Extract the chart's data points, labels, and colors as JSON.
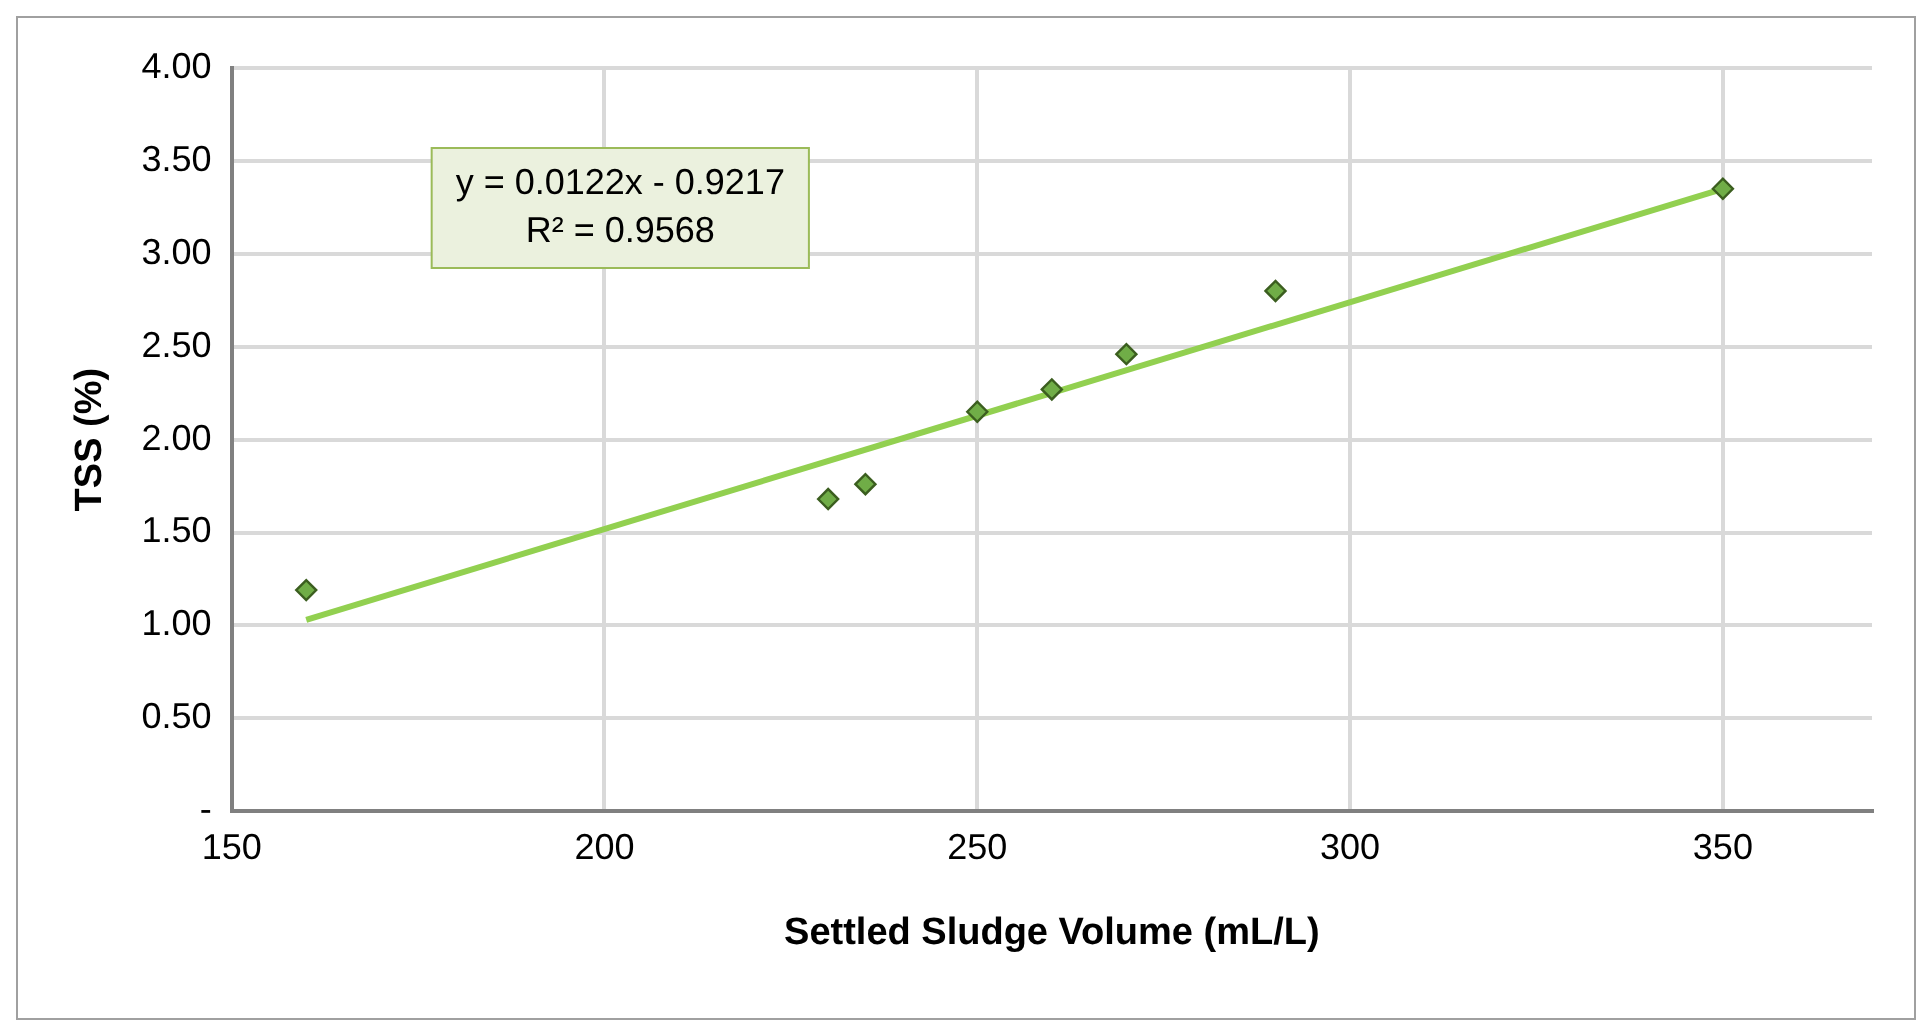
{
  "chart_data": {
    "type": "scatter",
    "xlabel": "Settled Sludge Volume (mL/L)",
    "ylabel": "TSS (%)",
    "x": [
      160,
      230,
      235,
      250,
      260,
      270,
      290,
      350
    ],
    "series": [
      {
        "type": "scatter",
        "color": "#70ad47",
        "values": [
          1.19,
          1.68,
          1.76,
          2.15,
          2.27,
          2.46,
          2.8,
          3.35
        ],
        "marker": "diamond"
      },
      {
        "type": "line",
        "color": "#92d050",
        "x": [
          160,
          350
        ],
        "values": [
          1.03,
          3.35
        ],
        "marker": "none",
        "line_style": "solid"
      }
    ],
    "xlim": [
      150,
      370
    ],
    "xticks": [
      150,
      200,
      250,
      300,
      350
    ],
    "ylim": [
      0,
      4
    ],
    "yticks": [
      {
        "value": 0,
        "label": "-"
      },
      {
        "value": 0.5,
        "label": "0.50"
      },
      {
        "value": 1,
        "label": "1.00"
      },
      {
        "value": 1.5,
        "label": "1.50"
      },
      {
        "value": 2,
        "label": "2.00"
      },
      {
        "value": 2.5,
        "label": "2.50"
      },
      {
        "value": 3,
        "label": "3.00"
      },
      {
        "value": 3.5,
        "label": "3.50"
      },
      {
        "value": 4,
        "label": "4.00"
      }
    ],
    "grid": true,
    "legend": false,
    "annotations": [
      "y = 0.0122x - 0.9217\nR² = 0.9568"
    ]
  }
}
